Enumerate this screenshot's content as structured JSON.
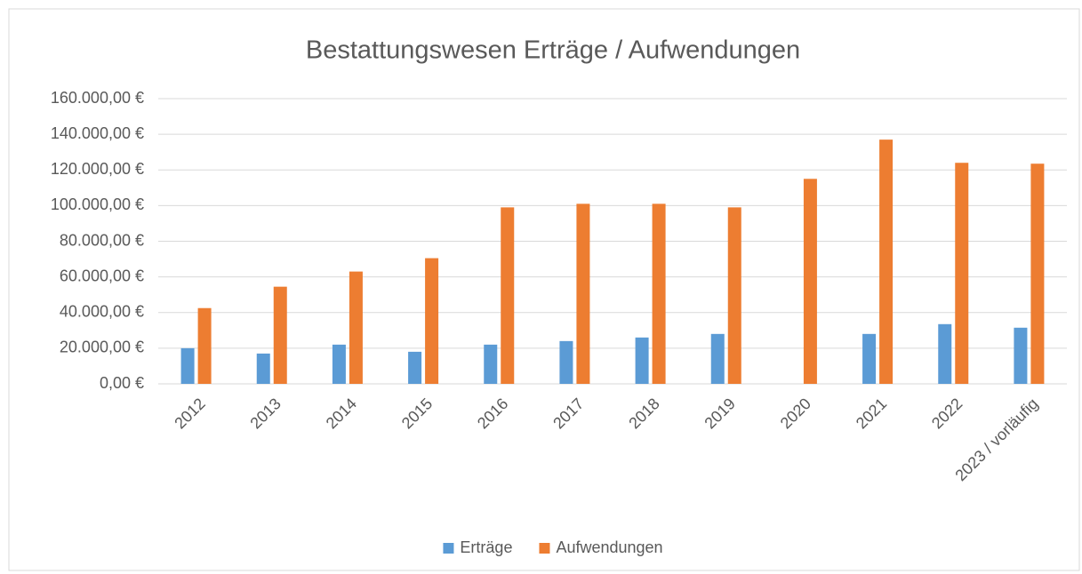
{
  "chart_data": {
    "type": "bar",
    "title": "Bestattungswesen Erträge / Aufwendungen",
    "categories": [
      "2012",
      "2013",
      "2014",
      "2015",
      "2016",
      "2017",
      "2018",
      "2019",
      "2020",
      "2021",
      "2022",
      "2023 / vorläufig"
    ],
    "series": [
      {
        "name": "Erträge",
        "color": "#5b9bd5",
        "values": [
          20000,
          17000,
          22000,
          18000,
          22000,
          24000,
          26000,
          28000,
          null,
          28000,
          33500,
          31500
        ]
      },
      {
        "name": "Aufwendungen",
        "color": "#ed7d31",
        "values": [
          42500,
          54500,
          63000,
          70500,
          99000,
          101000,
          101000,
          99000,
          115000,
          137000,
          124000,
          123500
        ]
      }
    ],
    "ylim": [
      0,
      160000
    ],
    "yticks": [
      {
        "value": 0,
        "label": "0,00 €"
      },
      {
        "value": 20000,
        "label": "20.000,00 €"
      },
      {
        "value": 40000,
        "label": "40.000,00 €"
      },
      {
        "value": 60000,
        "label": "60.000,00 €"
      },
      {
        "value": 80000,
        "label": "80.000,00 €"
      },
      {
        "value": 100000,
        "label": "100.000,00 €"
      },
      {
        "value": 120000,
        "label": "120.000,00 €"
      },
      {
        "value": 140000,
        "label": "140.000,00 €"
      },
      {
        "value": 160000,
        "label": "160.000,00 €"
      }
    ],
    "grid": true,
    "legend": "bottom"
  }
}
